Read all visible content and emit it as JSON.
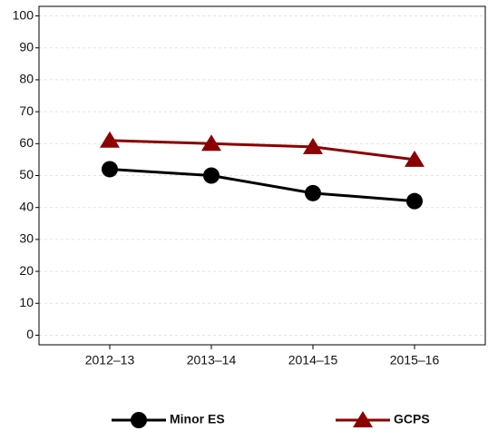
{
  "chart_data": {
    "type": "line",
    "categories": [
      "2012–13",
      "2013–14",
      "2014–15",
      "2015–16"
    ],
    "series": [
      {
        "name": "Minor ES",
        "color": "#000000",
        "marker": "circle",
        "values": [
          52,
          50,
          44.5,
          42
        ]
      },
      {
        "name": "GCPS",
        "color": "#8b0000",
        "marker": "triangle",
        "values": [
          61,
          60,
          59,
          55
        ]
      }
    ],
    "ylim": [
      -3,
      103
    ],
    "yticks": [
      0,
      10,
      20,
      30,
      40,
      50,
      60,
      70,
      80,
      90,
      100
    ],
    "grid": true
  }
}
